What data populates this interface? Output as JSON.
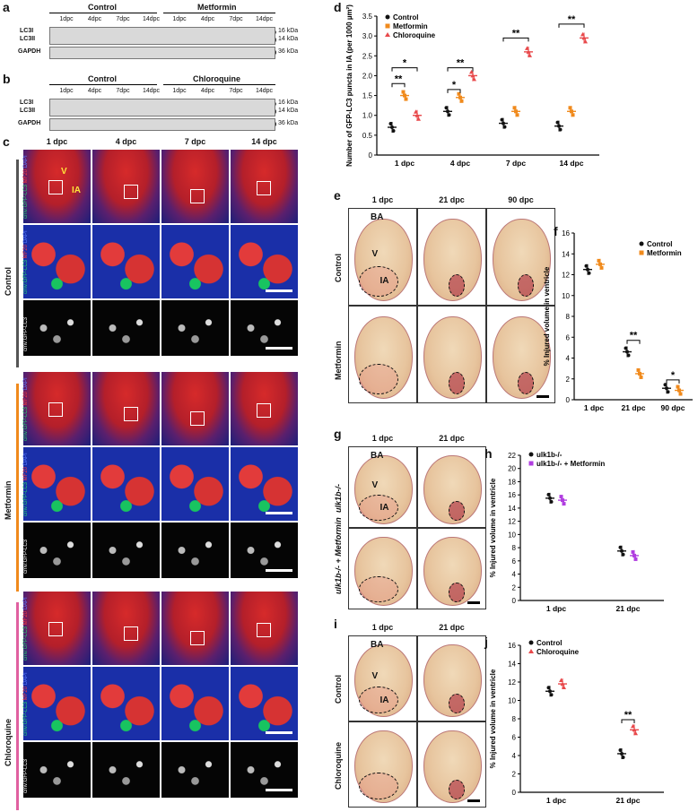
{
  "panels": {
    "a": {
      "label": "a",
      "group1": "Control",
      "group2": "Metformin",
      "lanes": [
        "1dpc",
        "4dpc",
        "7dpc",
        "14dpc",
        "1dpc",
        "4dpc",
        "7dpc",
        "14dpc"
      ],
      "rows": [
        "LC3I",
        "LC3II",
        "GAPDH"
      ],
      "kda": [
        "16 kDa",
        "14 kDa",
        "36 kDa"
      ]
    },
    "b": {
      "label": "b",
      "group1": "Control",
      "group2": "Chloroquine",
      "lanes": [
        "1dpc",
        "4dpc",
        "7dpc",
        "14dpc",
        "1dpc",
        "4dpc",
        "7dpc",
        "14dpc"
      ],
      "rows": [
        "LC3I",
        "LC3II",
        "GAPDH"
      ],
      "kda": [
        "16 kDa",
        "14 kDa",
        "36 kDa"
      ]
    },
    "c": {
      "label": "c",
      "cols": [
        "1 dpc",
        "4 dpc",
        "7 dpc",
        "14 dpc"
      ],
      "groups": [
        "Control",
        "Metformin",
        "Chloroquine"
      ],
      "side1": "cmv:GFP-LC3",
      "side2": "MF20",
      "side3": "DAPI",
      "v": "V",
      "ia": "IA"
    },
    "e": {
      "label": "e",
      "cols": [
        "1 dpc",
        "21 dpc",
        "90 dpc"
      ],
      "rows": [
        "Control",
        "Metformin"
      ],
      "ba": "BA",
      "v": "V",
      "ia": "IA"
    },
    "g": {
      "label": "g",
      "cols": [
        "1 dpc",
        "21 dpc"
      ],
      "rows": [
        "ulk1b-/-",
        "ulk1b-/- + Metformin"
      ],
      "ba": "BA",
      "v": "V",
      "ia": "IA"
    },
    "i": {
      "label": "i",
      "cols": [
        "1 dpc",
        "21 dpc"
      ],
      "rows": [
        "Control",
        "Chloroquine"
      ],
      "ba": "BA",
      "v": "V",
      "ia": "IA"
    }
  },
  "chart_data": [
    {
      "id": "d",
      "type": "scatter",
      "label": "d",
      "ylabel": "Number of GFP-LC3 puncta in IA (per 1000 µm²)",
      "categories": [
        "1 dpc",
        "4 dpc",
        "7 dpc",
        "14 dpc"
      ],
      "ylim": [
        0,
        3.5
      ],
      "yticks": [
        "0",
        "0.5",
        "1.0",
        "1.5",
        "2.0",
        "2.5",
        "3.0",
        "3.5"
      ],
      "series": [
        {
          "name": "Control",
          "color": "#111111",
          "marker": "circle",
          "values": [
            0.7,
            1.1,
            0.8,
            0.73
          ]
        },
        {
          "name": "Metformin",
          "color": "#f08a1c",
          "marker": "square",
          "values": [
            1.5,
            1.45,
            1.1,
            1.1
          ]
        },
        {
          "name": "Chloroquine",
          "color": "#e8494b",
          "marker": "triangle",
          "values": [
            1.0,
            2.0,
            2.6,
            2.95
          ]
        }
      ],
      "annotations": [
        "**",
        "*",
        "*",
        "**",
        "**",
        "**"
      ]
    },
    {
      "id": "f",
      "type": "scatter",
      "label": "f",
      "ylabel": "% Injured volume in ventricle",
      "categories": [
        "1 dpc",
        "21 dpc",
        "90 dpc"
      ],
      "ylim": [
        0,
        16
      ],
      "yticks": [
        "0",
        "2",
        "4",
        "6",
        "8",
        "10",
        "12",
        "14",
        "16"
      ],
      "series": [
        {
          "name": "Control",
          "color": "#111111",
          "marker": "circle",
          "values": [
            12.5,
            4.6,
            1.1
          ]
        },
        {
          "name": "Metformin",
          "color": "#f08a1c",
          "marker": "square",
          "values": [
            13.0,
            2.5,
            0.9
          ]
        }
      ],
      "annotations": [
        "**",
        "*"
      ]
    },
    {
      "id": "h",
      "type": "scatter",
      "label": "h",
      "ylabel": "% Injured volume in ventricle",
      "categories": [
        "1 dpc",
        "21 dpc"
      ],
      "ylim": [
        0,
        22
      ],
      "yticks": [
        "0",
        "2",
        "4",
        "6",
        "8",
        "10",
        "12",
        "14",
        "16",
        "18",
        "20",
        "22"
      ],
      "series": [
        {
          "name": "ulk1b-/-",
          "color": "#111111",
          "marker": "circle",
          "values": [
            15.5,
            7.5
          ]
        },
        {
          "name": "ulk1b-/- + Metformin",
          "color": "#b03ee0",
          "marker": "square",
          "values": [
            15.2,
            6.8
          ]
        }
      ],
      "annotations": []
    },
    {
      "id": "j",
      "type": "scatter",
      "label": "j",
      "ylabel": "% Injured volume in ventricle",
      "categories": [
        "1 dpc",
        "21 dpc"
      ],
      "ylim": [
        0,
        16
      ],
      "yticks": [
        "0",
        "2",
        "4",
        "6",
        "8",
        "10",
        "12",
        "14",
        "16"
      ],
      "series": [
        {
          "name": "Control",
          "color": "#111111",
          "marker": "circle",
          "values": [
            11.0,
            4.2
          ]
        },
        {
          "name": "Chloroquine",
          "color": "#e8494b",
          "marker": "triangle",
          "values": [
            11.8,
            6.8
          ]
        }
      ],
      "annotations": [
        "**"
      ]
    }
  ]
}
